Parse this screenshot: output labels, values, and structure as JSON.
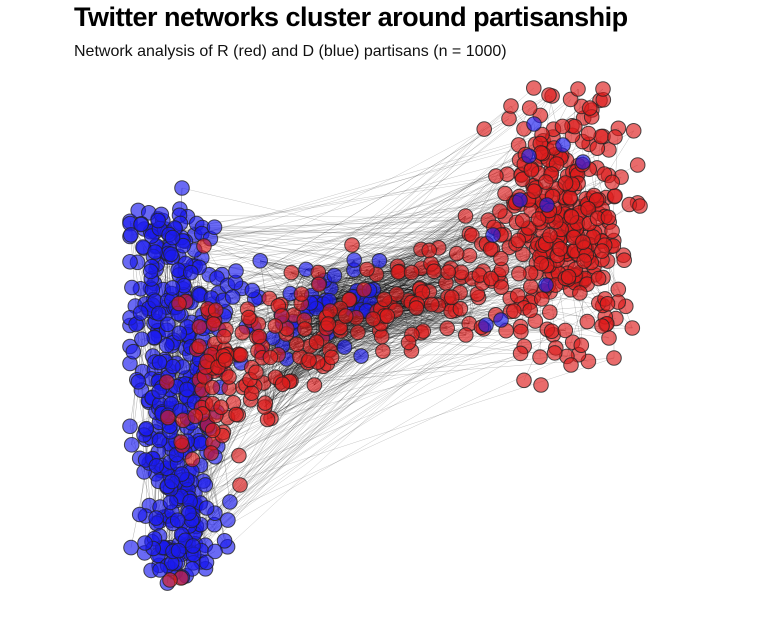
{
  "chart_data": {
    "type": "network",
    "title": "Twitter networks cluster around partisanship",
    "subtitle": "Network analysis of R (red) and D (blue) partisans (n = 1000)",
    "n_nodes": 1000,
    "groups": [
      {
        "name": "R",
        "label": "red",
        "color": "#dd1c1c"
      },
      {
        "name": "D",
        "label": "blue",
        "color": "#1a1aee"
      }
    ],
    "grid": false,
    "axes": false,
    "legend": "none"
  }
}
